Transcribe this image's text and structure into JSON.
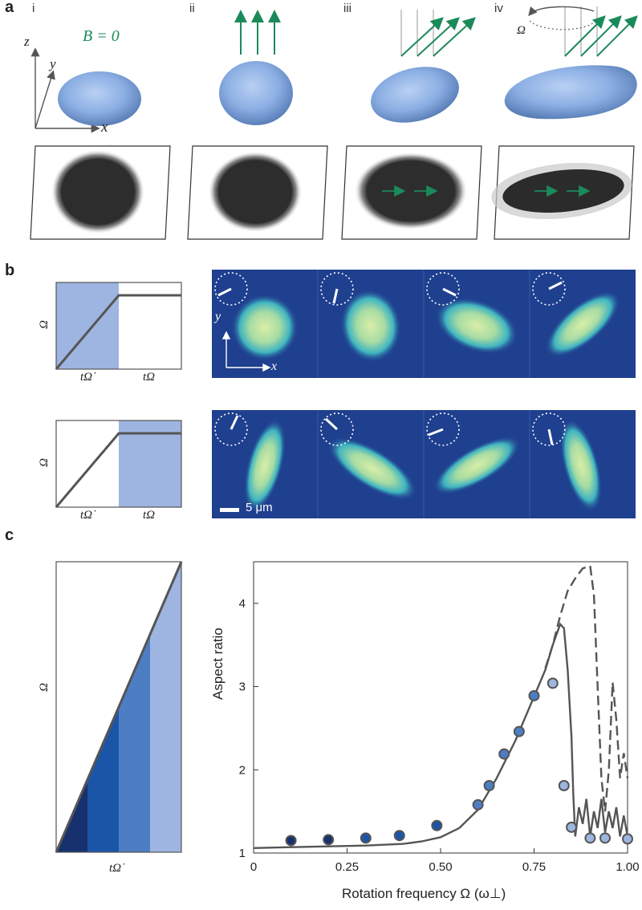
{
  "panel_a": {
    "letter": "a",
    "columns": [
      {
        "roman": "i",
        "field_label": "B = 0"
      },
      {
        "roman": "ii"
      },
      {
        "roman": "iii"
      },
      {
        "roman": "iv",
        "omega_label": "Ω"
      }
    ],
    "axes": {
      "x": "x",
      "y": "y",
      "z": "z"
    },
    "colors": {
      "field": "#1b8a5a",
      "cloud": "#8fb3e6",
      "shadow": "#2b2b2b"
    }
  },
  "panel_b": {
    "letter": "b",
    "ramp_axis_label": "Ω",
    "ramp_tick_1": "tΩ̇",
    "ramp_tick_2": "tΩ",
    "image_axes": {
      "x": "x",
      "y": "y"
    },
    "scale_bar": "5 μm",
    "colors": {
      "highlight": "#9db5e0",
      "background": "#1f3f8f"
    }
  },
  "panel_c": {
    "letter": "c",
    "ramp_axis_label": "Ω",
    "ramp_tick": "tΩ̇",
    "ramp_colors": [
      "#17306e",
      "#1b55a8",
      "#4d7ec4",
      "#9db5e0"
    ]
  },
  "chart_data": {
    "type": "scatter",
    "xlabel": "Rotation frequency  Ω (ω⊥)",
    "ylabel": "Aspect ratio",
    "xlim": [
      0,
      1.0
    ],
    "ylim": [
      1,
      4.5
    ],
    "xticks": [
      0,
      0.25,
      0.5,
      0.75,
      1.0
    ],
    "xtick_labels": [
      "0",
      "0.25",
      "0.50",
      "0.75",
      "1.00"
    ],
    "yticks": [
      1,
      2,
      3,
      4
    ],
    "ytick_labels": [
      "1",
      "2",
      "3",
      "4"
    ],
    "points": [
      {
        "x": 0.1,
        "y": 1.15,
        "color": "#17306e"
      },
      {
        "x": 0.2,
        "y": 1.16,
        "color": "#17306e"
      },
      {
        "x": 0.3,
        "y": 1.18,
        "color": "#1b55a8"
      },
      {
        "x": 0.39,
        "y": 1.21,
        "color": "#1b55a8"
      },
      {
        "x": 0.49,
        "y": 1.33,
        "color": "#1b55a8"
      },
      {
        "x": 0.6,
        "y": 1.58,
        "color": "#4d7ec4"
      },
      {
        "x": 0.63,
        "y": 1.81,
        "color": "#4d7ec4"
      },
      {
        "x": 0.67,
        "y": 2.19,
        "color": "#4d7ec4"
      },
      {
        "x": 0.71,
        "y": 2.46,
        "color": "#4d7ec4"
      },
      {
        "x": 0.75,
        "y": 2.89,
        "color": "#4d7ec4"
      },
      {
        "x": 0.8,
        "y": 3.04,
        "color": "#9db5e0"
      },
      {
        "x": 0.83,
        "y": 1.81,
        "color": "#9db5e0"
      },
      {
        "x": 0.85,
        "y": 1.31,
        "color": "#9db5e0"
      },
      {
        "x": 0.9,
        "y": 1.18,
        "color": "#9db5e0"
      },
      {
        "x": 0.94,
        "y": 1.18,
        "color": "#9db5e0"
      },
      {
        "x": 1.0,
        "y": 1.17,
        "color": "#9db5e0"
      }
    ],
    "solid_curve": [
      [
        0.0,
        1.06
      ],
      [
        0.1,
        1.07
      ],
      [
        0.2,
        1.08
      ],
      [
        0.3,
        1.09
      ],
      [
        0.4,
        1.11
      ],
      [
        0.45,
        1.14
      ],
      [
        0.5,
        1.19
      ],
      [
        0.55,
        1.3
      ],
      [
        0.6,
        1.52
      ],
      [
        0.65,
        1.9
      ],
      [
        0.7,
        2.35
      ],
      [
        0.75,
        2.88
      ],
      [
        0.78,
        3.2
      ],
      [
        0.8,
        3.5
      ],
      [
        0.82,
        3.75
      ],
      [
        0.83,
        3.7
      ],
      [
        0.84,
        3.2
      ],
      [
        0.85,
        2.4
      ],
      [
        0.855,
        1.7
      ],
      [
        0.86,
        1.2
      ],
      [
        0.87,
        1.55
      ],
      [
        0.88,
        1.35
      ],
      [
        0.89,
        1.65
      ],
      [
        0.9,
        1.2
      ],
      [
        0.91,
        1.5
      ],
      [
        0.92,
        1.3
      ],
      [
        0.93,
        1.65
      ],
      [
        0.94,
        1.25
      ],
      [
        0.95,
        1.5
      ],
      [
        0.96,
        1.3
      ],
      [
        0.97,
        1.55
      ],
      [
        0.98,
        1.2
      ],
      [
        0.99,
        1.45
      ],
      [
        1.0,
        1.2
      ]
    ],
    "dashed_curve": [
      [
        0.78,
        3.22
      ],
      [
        0.8,
        3.5
      ],
      [
        0.82,
        3.85
      ],
      [
        0.84,
        4.15
      ],
      [
        0.86,
        4.3
      ],
      [
        0.88,
        4.42
      ],
      [
        0.9,
        4.45
      ],
      [
        0.91,
        4.1
      ],
      [
        0.92,
        3.0
      ],
      [
        0.93,
        1.9
      ],
      [
        0.94,
        1.5
      ],
      [
        0.95,
        2.0
      ],
      [
        0.96,
        3.05
      ],
      [
        0.97,
        2.6
      ],
      [
        0.98,
        1.9
      ],
      [
        0.99,
        2.2
      ],
      [
        1.0,
        1.9
      ]
    ]
  }
}
